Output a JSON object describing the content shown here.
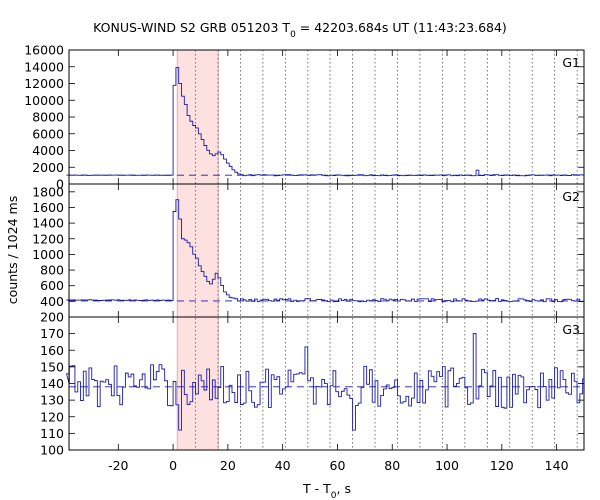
{
  "chart_data": {
    "type": "line",
    "title": {
      "prefix": "KONUS-WIND S2 GRB 051203 T",
      "sub": "0",
      "suffix": " = 42203.684s UT (11:43:23.684)"
    },
    "xlabel": {
      "prefix": "T - T",
      "sub": "0",
      "suffix": ", s"
    },
    "ylabel": "counts / 1024 ms",
    "xlim": [
      -38,
      150
    ],
    "x_ticks": [
      -20,
      0,
      20,
      40,
      60,
      80,
      100,
      120,
      140
    ],
    "x_tick_labels": [
      "-20",
      "0",
      "20",
      "40",
      "60",
      "80",
      "100",
      "120",
      "140"
    ],
    "highlight_interval": [
      1.5,
      16.5
    ],
    "interval_markers": [
      8.2,
      16.4,
      24.6,
      32.8,
      41.0,
      49.2,
      57.3,
      65.5,
      73.7,
      81.9,
      90.1,
      98.3,
      106.5,
      114.7,
      122.9,
      131.1,
      139.3,
      147.5
    ],
    "bin_width_s": 1.024,
    "panels": [
      {
        "label": "G1",
        "ylim": [
          0,
          16000
        ],
        "y_ticks": [
          0,
          2000,
          4000,
          6000,
          8000,
          10000,
          12000,
          14000,
          16000
        ],
        "y_tick_labels": [
          "0",
          "2000",
          "4000",
          "6000",
          "8000",
          "10000",
          "12000",
          "14000",
          "16000"
        ],
        "background": 1050,
        "pre_burst_level": 1050,
        "burst_profile": [
          [
            0,
            11800
          ],
          [
            1,
            13900
          ],
          [
            2,
            12000
          ],
          [
            3,
            10500
          ],
          [
            4,
            9500
          ],
          [
            5,
            8200
          ],
          [
            6,
            7500
          ],
          [
            7,
            7000
          ],
          [
            8,
            6700
          ],
          [
            9,
            6000
          ],
          [
            10,
            5300
          ],
          [
            11,
            4600
          ],
          [
            12,
            4000
          ],
          [
            13,
            3600
          ],
          [
            14,
            3400
          ],
          [
            15,
            3600
          ],
          [
            16,
            3800
          ],
          [
            17,
            3500
          ],
          [
            18,
            3000
          ],
          [
            19,
            2500
          ],
          [
            20,
            2100
          ],
          [
            21,
            1700
          ],
          [
            22,
            1400
          ],
          [
            23,
            1200
          ],
          [
            24,
            1100
          ]
        ],
        "tail_level": 1050,
        "noise_amplitude": 70,
        "spikes": [
          [
            111,
            1650
          ]
        ]
      },
      {
        "label": "G2",
        "ylim": [
          200,
          1900
        ],
        "y_ticks": [
          200,
          400,
          600,
          800,
          1000,
          1200,
          1400,
          1600,
          1800
        ],
        "y_tick_labels": [
          "200",
          "400",
          "600",
          "800",
          "1000",
          "1200",
          "1400",
          "1600",
          "1800"
        ],
        "background": 405,
        "pre_burst_level": 415,
        "burst_profile": [
          [
            0,
            1550
          ],
          [
            1,
            1700
          ],
          [
            2,
            1450
          ],
          [
            3,
            1200
          ],
          [
            4,
            1180
          ],
          [
            5,
            1150
          ],
          [
            6,
            1100
          ],
          [
            7,
            1000
          ],
          [
            8,
            950
          ],
          [
            9,
            850
          ],
          [
            10,
            780
          ],
          [
            11,
            720
          ],
          [
            12,
            650
          ],
          [
            13,
            620
          ],
          [
            14,
            680
          ],
          [
            15,
            760
          ],
          [
            16,
            700
          ],
          [
            17,
            600
          ],
          [
            18,
            520
          ],
          [
            19,
            480
          ],
          [
            20,
            450
          ],
          [
            21,
            440
          ],
          [
            22,
            430
          ]
        ],
        "tail_level": 415,
        "noise_amplitude": 20,
        "spikes": []
      },
      {
        "label": "G3",
        "ylim": [
          100,
          180
        ],
        "y_ticks": [
          100,
          110,
          120,
          130,
          140,
          150,
          160,
          170
        ],
        "y_tick_labels": [
          "100",
          "110",
          "120",
          "130",
          "140",
          "150",
          "160",
          "170"
        ],
        "background": 138,
        "pre_burst_level": 139,
        "burst_profile": [],
        "tail_level": 138,
        "noise_amplitude": 13,
        "spikes": [
          [
            2,
            112
          ],
          [
            48,
            162
          ],
          [
            110,
            170
          ],
          [
            66,
            112
          ]
        ]
      }
    ]
  }
}
